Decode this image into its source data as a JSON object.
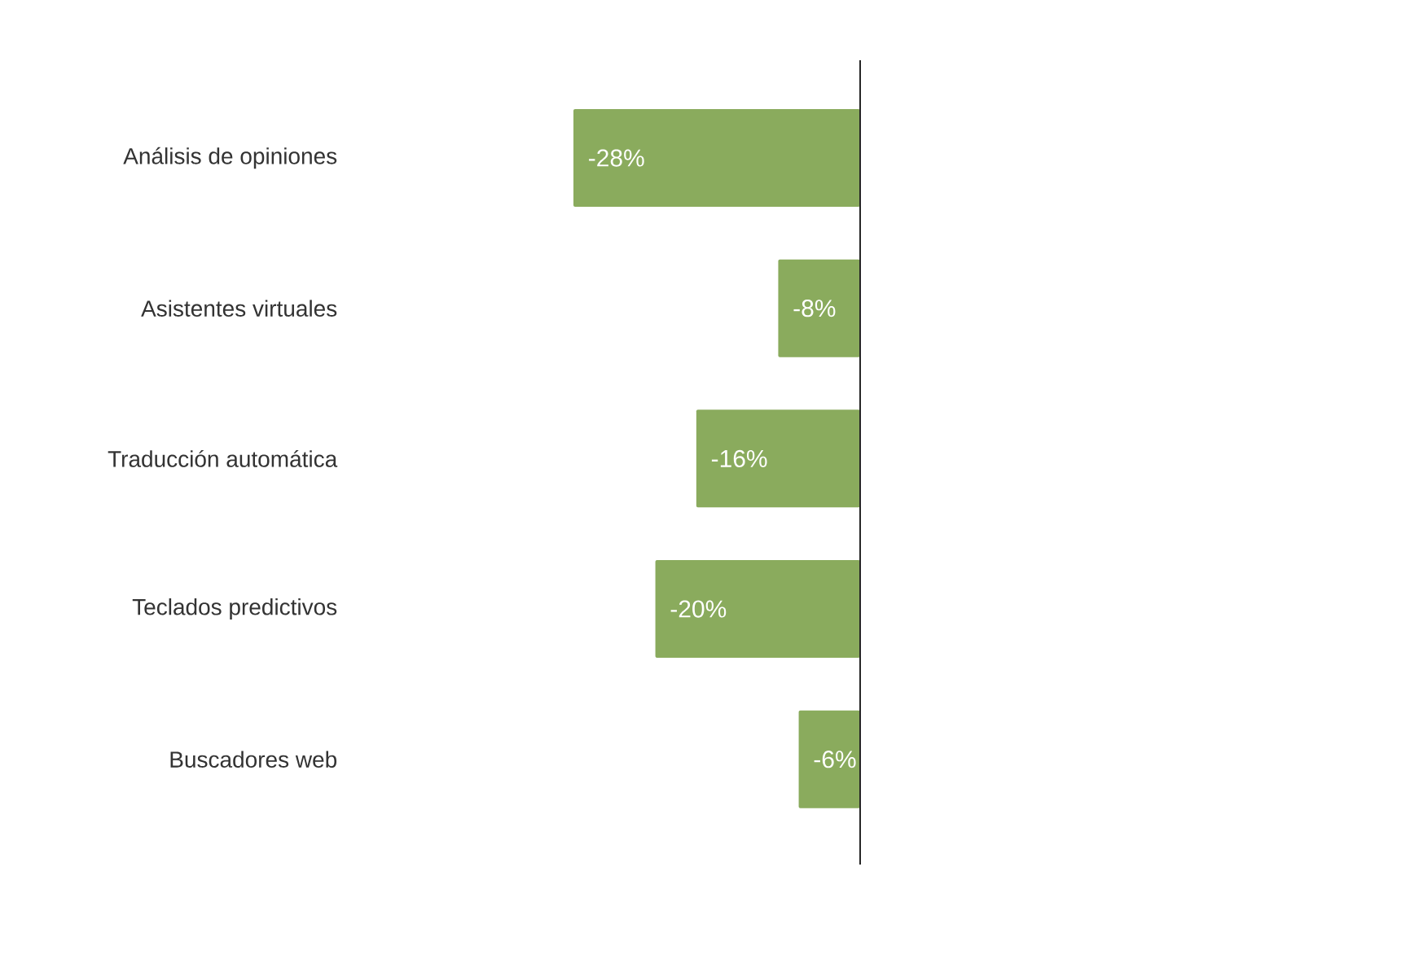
{
  "chart_data": {
    "type": "bar",
    "orientation": "horizontal",
    "categories": [
      "Análisis de opiniones",
      "Asistentes virtuales",
      "Traducción automática",
      "Teclados predictivos",
      "Buscadores web"
    ],
    "values": [
      -28,
      -8,
      -16,
      -20,
      -6
    ],
    "value_labels": [
      "-28%",
      "-8%",
      "-16%",
      "-20%",
      "-6%"
    ],
    "color": "#8aab5d",
    "tick_labels": "y"
  }
}
